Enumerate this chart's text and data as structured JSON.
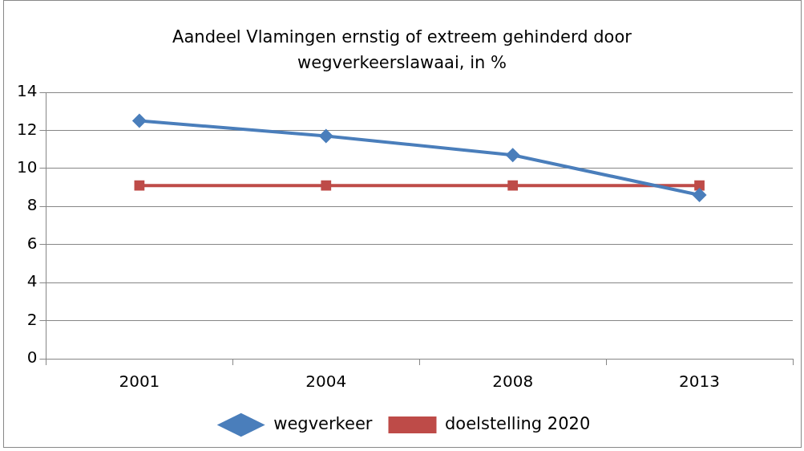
{
  "chart_data": {
    "type": "line",
    "title": "Aandeel Vlamingen ernstig of extreem gehinderd door wegverkeerslawaai, in %",
    "categories": [
      "2001",
      "2004",
      "2008",
      "2013"
    ],
    "series": [
      {
        "name": "wegverkeer",
        "color": "#4a7ebb",
        "values": [
          12.5,
          11.7,
          10.7,
          8.6
        ],
        "marker": "diamond"
      },
      {
        "name": "doelstelling 2020",
        "color": "#be4b48",
        "values": [
          9.1,
          9.1,
          9.1,
          9.1
        ],
        "marker": "square"
      }
    ],
    "ylim": [
      0,
      14
    ],
    "yticks": [
      0,
      2,
      4,
      6,
      8,
      10,
      12,
      14
    ],
    "grid": "y",
    "legend": "bottom",
    "line_style": "solid"
  }
}
